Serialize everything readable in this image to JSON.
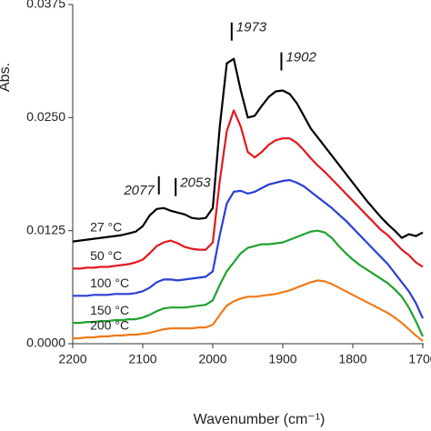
{
  "chart_data": {
    "type": "line",
    "xlabel": "Wavenumber (cm⁻¹)",
    "ylabel": "Abs.",
    "xlim": [
      2200,
      1700
    ],
    "xticks": [
      2200,
      2100,
      2000,
      1900,
      1800,
      1700
    ],
    "ylim": [
      0,
      0.0375
    ],
    "yticks": [
      {
        "value": 0,
        "label": "0.0000"
      },
      0.0125,
      {
        "value": 0.025,
        "label": "0.0250"
      },
      0.0375
    ],
    "x": [
      2200,
      2190,
      2180,
      2170,
      2160,
      2150,
      2140,
      2130,
      2120,
      2110,
      2100,
      2090,
      2080,
      2070,
      2060,
      2050,
      2040,
      2030,
      2020,
      2010,
      2000,
      1990,
      1980,
      1970,
      1960,
      1950,
      1940,
      1930,
      1920,
      1910,
      1900,
      1890,
      1880,
      1870,
      1860,
      1850,
      1840,
      1830,
      1820,
      1810,
      1800,
      1790,
      1780,
      1770,
      1760,
      1750,
      1740,
      1730,
      1720,
      1710,
      1700
    ],
    "series": [
      {
        "name": "27 °C",
        "color": "#000000",
        "values": [
          0.0113,
          0.0114,
          0.0115,
          0.0116,
          0.0117,
          0.0118,
          0.0119,
          0.012,
          0.0122,
          0.0124,
          0.013,
          0.0142,
          0.0149,
          0.015,
          0.0147,
          0.0145,
          0.0143,
          0.0139,
          0.0138,
          0.0139,
          0.015,
          0.024,
          0.031,
          0.0315,
          0.028,
          0.025,
          0.0252,
          0.0263,
          0.0273,
          0.0279,
          0.028,
          0.0276,
          0.0266,
          0.0252,
          0.0238,
          0.0228,
          0.0218,
          0.0208,
          0.0198,
          0.0188,
          0.0178,
          0.0168,
          0.0158,
          0.0149,
          0.014,
          0.0132,
          0.0125,
          0.0117,
          0.0121,
          0.0119,
          0.0123
        ]
      },
      {
        "name": "50 °C",
        "color": "#e0191e",
        "values": [
          0.0083,
          0.0083,
          0.0084,
          0.0084,
          0.0085,
          0.0085,
          0.0086,
          0.0087,
          0.0088,
          0.009,
          0.0093,
          0.01,
          0.0108,
          0.0112,
          0.0114,
          0.0111,
          0.0107,
          0.0105,
          0.0104,
          0.0104,
          0.0112,
          0.018,
          0.0235,
          0.0258,
          0.024,
          0.0212,
          0.0206,
          0.0212,
          0.022,
          0.0225,
          0.0227,
          0.0227,
          0.0222,
          0.0214,
          0.0205,
          0.0197,
          0.019,
          0.0182,
          0.0174,
          0.0166,
          0.0158,
          0.015,
          0.0142,
          0.0134,
          0.0126,
          0.012,
          0.0112,
          0.0104,
          0.0098,
          0.009,
          0.0085
        ]
      },
      {
        "name": "100 °C",
        "color": "#2a3fd6",
        "values": [
          0.0053,
          0.0053,
          0.0053,
          0.0054,
          0.0054,
          0.0054,
          0.0055,
          0.0055,
          0.0055,
          0.0056,
          0.0058,
          0.0062,
          0.0068,
          0.0071,
          0.0071,
          0.007,
          0.0071,
          0.0072,
          0.0073,
          0.0074,
          0.008,
          0.012,
          0.0155,
          0.0168,
          0.0169,
          0.0166,
          0.0168,
          0.0172,
          0.0176,
          0.0178,
          0.018,
          0.0181,
          0.0178,
          0.0174,
          0.0168,
          0.0162,
          0.0156,
          0.015,
          0.0143,
          0.0136,
          0.0128,
          0.012,
          0.0112,
          0.0104,
          0.0096,
          0.0088,
          0.0078,
          0.0068,
          0.0058,
          0.0045,
          0.0028
        ]
      },
      {
        "name": "150 °C",
        "color": "#1fa22e",
        "values": [
          0.0023,
          0.0023,
          0.0024,
          0.0024,
          0.0025,
          0.0025,
          0.0026,
          0.0026,
          0.0027,
          0.0027,
          0.0029,
          0.0032,
          0.0036,
          0.0039,
          0.004,
          0.004,
          0.004,
          0.0041,
          0.0042,
          0.0043,
          0.0048,
          0.0065,
          0.008,
          0.009,
          0.01,
          0.0106,
          0.0108,
          0.011,
          0.011,
          0.0111,
          0.0112,
          0.0115,
          0.0118,
          0.0121,
          0.0124,
          0.0125,
          0.0123,
          0.0117,
          0.0108,
          0.01,
          0.0093,
          0.0087,
          0.0082,
          0.0077,
          0.0072,
          0.0067,
          0.006,
          0.0052,
          0.004,
          0.0025,
          0.0008
        ]
      },
      {
        "name": "200 °C",
        "color": "#f07a1a",
        "values": [
          0.0006,
          0.0006,
          0.0007,
          0.0007,
          0.0008,
          0.0008,
          0.0009,
          0.0009,
          0.001,
          0.001,
          0.0011,
          0.0012,
          0.0014,
          0.0016,
          0.0017,
          0.0017,
          0.0017,
          0.0017,
          0.0018,
          0.0018,
          0.0021,
          0.0032,
          0.0042,
          0.0047,
          0.005,
          0.0052,
          0.0052,
          0.0053,
          0.0054,
          0.0055,
          0.0057,
          0.0059,
          0.0062,
          0.0065,
          0.0068,
          0.007,
          0.0069,
          0.0066,
          0.0062,
          0.0058,
          0.0054,
          0.005,
          0.0046,
          0.0042,
          0.0038,
          0.0034,
          0.0029,
          0.0023,
          0.0016,
          0.0009,
          0.0003
        ]
      }
    ],
    "annotations": [
      {
        "text": "2077",
        "x": 2077
      },
      {
        "text": "2053",
        "x": 2053
      },
      {
        "text": "1973",
        "x": 1973
      },
      {
        "text": "1902",
        "x": 1902
      }
    ]
  }
}
